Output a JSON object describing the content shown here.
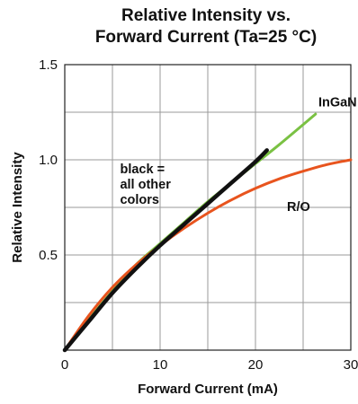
{
  "chart_data": {
    "type": "line",
    "title_line1": "Relative Intensity vs.",
    "title_line2": "Forward Current (Ta=25 °C)",
    "xlabel": "Forward Current (mA)",
    "ylabel": "Relative Intensity",
    "xlim": [
      0,
      30
    ],
    "ylim": [
      0,
      1.5
    ],
    "x_ticks": [
      "0",
      "10",
      "20",
      "30"
    ],
    "y_ticks": [
      "0.5",
      "1.0",
      "1.5"
    ],
    "grid": true,
    "series": [
      {
        "name": "InGaN Green",
        "color": "#7ac143",
        "x": [
          0,
          2.5,
          5,
          7.5,
          10,
          12.5,
          15,
          17.5,
          20,
          22.5,
          26.3
        ],
        "y": [
          0,
          0.16,
          0.31,
          0.45,
          0.56,
          0.67,
          0.78,
          0.88,
          0.98,
          1.08,
          1.24
        ]
      },
      {
        "name": "R/O",
        "color": "#e8541e",
        "x": [
          0,
          2.5,
          5,
          7.5,
          10,
          12.5,
          15,
          17.5,
          20,
          22.5,
          25,
          27.5,
          30
        ],
        "y": [
          0,
          0.18,
          0.33,
          0.45,
          0.55,
          0.64,
          0.72,
          0.79,
          0.85,
          0.9,
          0.94,
          0.975,
          1.0
        ]
      },
      {
        "name": "black = all other colors",
        "color": "#111111",
        "x": [
          0,
          2.5,
          5,
          7.5,
          10,
          12.5,
          15,
          17.5,
          20,
          21.2
        ],
        "y": [
          0,
          0.15,
          0.3,
          0.43,
          0.55,
          0.66,
          0.77,
          0.88,
          0.99,
          1.05
        ]
      }
    ],
    "annotations": [
      {
        "text": "InGaN Green",
        "x": 26.6,
        "y": 1.28
      },
      {
        "text": "R/O",
        "x": 23.3,
        "y": 0.73
      },
      {
        "text_lines": [
          "black =",
          "all other",
          "colors"
        ],
        "x": 5.8,
        "y": 0.93
      }
    ]
  }
}
